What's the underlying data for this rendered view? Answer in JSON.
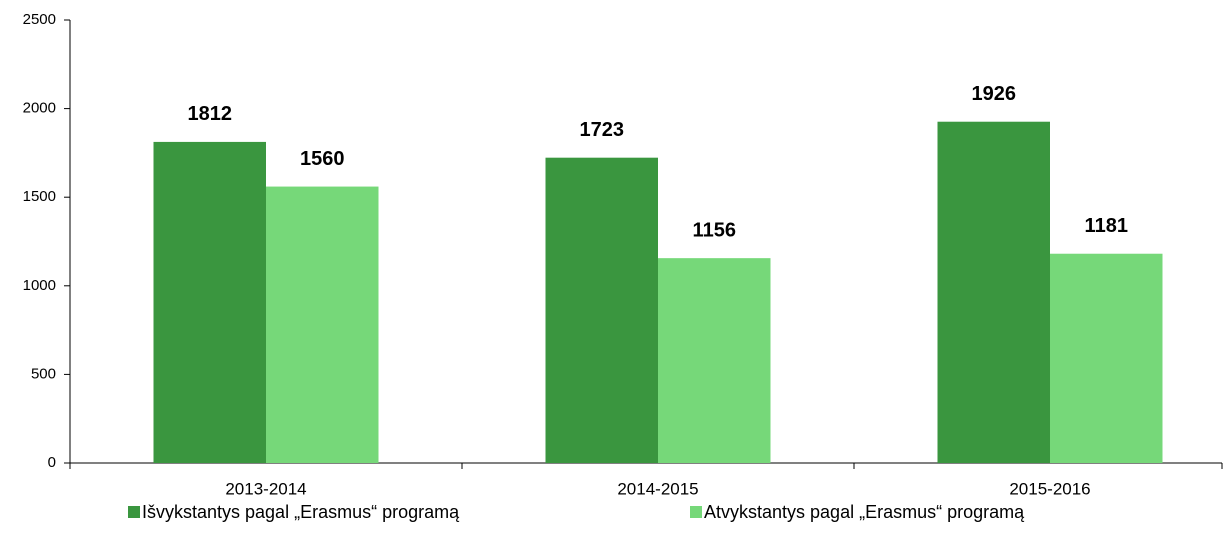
{
  "chart_data": {
    "type": "bar",
    "categories": [
      "2013-2014",
      "2014-2015",
      "2015-2016"
    ],
    "series": [
      {
        "name": "Išvykstantys pagal „Erasmus“ programą",
        "color": "#3a963f",
        "values": [
          1812,
          1723,
          1926
        ]
      },
      {
        "name": "Atvykstantys pagal „Erasmus“ programą",
        "color": "#76d879",
        "values": [
          1560,
          1156,
          1181
        ]
      }
    ],
    "ylim": [
      0,
      2500
    ],
    "yticks": [
      0,
      500,
      1000,
      1500,
      2000,
      2500
    ],
    "grid": false,
    "legend": "bottom"
  }
}
